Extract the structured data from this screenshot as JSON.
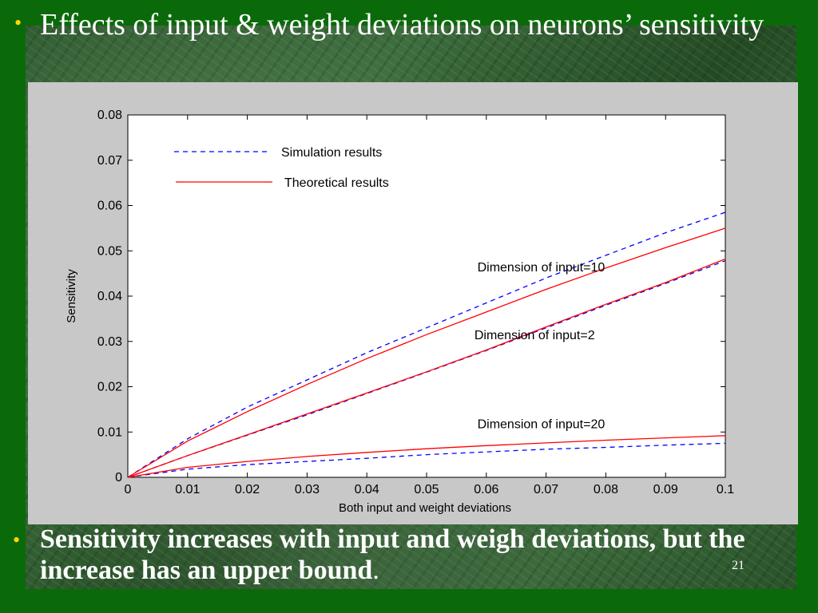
{
  "slide": {
    "title": "Effects of input & weight deviations on neurons’ sensitivity",
    "bullet_text_bold": "Sensitivity increases with input and weigh deviations, but the increase has an upper bound",
    "bullet_text_tail": ".",
    "slide_number": "21",
    "bullet_glyph": "•",
    "colors": {
      "background": "#0a6a0a",
      "bullet": "#ffd700",
      "text": "#ffffff",
      "panel": "#c8c8c8"
    }
  },
  "chart_data": {
    "type": "line",
    "title": "",
    "xlabel": "Both input and weight deviations",
    "ylabel": "Sensitivity",
    "xlim": [
      0,
      0.1
    ],
    "ylim": [
      0,
      0.08
    ],
    "xticks": [
      "0",
      "0.01",
      "0.02",
      "0.03",
      "0.04",
      "0.05",
      "0.06",
      "0.07",
      "0.08",
      "0.09",
      "0.1"
    ],
    "yticks": [
      "0",
      "0.01",
      "0.02",
      "0.03",
      "0.04",
      "0.05",
      "0.06",
      "0.07",
      "0.08"
    ],
    "grid": false,
    "legend": {
      "placement": "top-left",
      "entries": [
        {
          "label": "Simulation results",
          "style": "dashed",
          "color": "#0000ff"
        },
        {
          "label": "Theoretical results",
          "style": "solid",
          "color": "#ff0000"
        }
      ]
    },
    "annotations": [
      {
        "text": "Dimension of input=10",
        "x": 0.0585,
        "y": 0.0455
      },
      {
        "text": "Dimension of input=2",
        "x": 0.058,
        "y": 0.0305
      },
      {
        "text": "Dimension of input=20",
        "x": 0.0585,
        "y": 0.0108
      }
    ],
    "x": [
      0,
      0.01,
      0.02,
      0.03,
      0.04,
      0.05,
      0.06,
      0.07,
      0.08,
      0.09,
      0.1
    ],
    "series": [
      {
        "group": "Dimension of input=10",
        "kind": "Simulation results",
        "style": "dashed",
        "color": "#0000ff",
        "values": [
          0,
          0.0085,
          0.0155,
          0.0215,
          0.0275,
          0.033,
          0.0385,
          0.044,
          0.049,
          0.054,
          0.0585
        ]
      },
      {
        "group": "Dimension of input=10",
        "kind": "Theoretical results",
        "style": "solid",
        "color": "#ff0000",
        "values": [
          0,
          0.008,
          0.0145,
          0.0205,
          0.0262,
          0.0315,
          0.0365,
          0.0415,
          0.0462,
          0.0507,
          0.055
        ]
      },
      {
        "group": "Dimension of input=2",
        "kind": "Simulation results",
        "style": "dashed",
        "color": "#0000ff",
        "values": [
          0,
          0.0048,
          0.0093,
          0.0138,
          0.0185,
          0.0232,
          0.028,
          0.033,
          0.038,
          0.0428,
          0.0478
        ]
      },
      {
        "group": "Dimension of input=2",
        "kind": "Theoretical results",
        "style": "solid",
        "color": "#ff0000",
        "values": [
          0,
          0.0048,
          0.0094,
          0.014,
          0.0186,
          0.0233,
          0.0281,
          0.0332,
          0.0382,
          0.043,
          0.0482
        ]
      },
      {
        "group": "Dimension of input=20",
        "kind": "Simulation results",
        "style": "dashed",
        "color": "#0000ff",
        "values": [
          0,
          0.0018,
          0.0028,
          0.0035,
          0.0042,
          0.005,
          0.0056,
          0.0062,
          0.0066,
          0.0071,
          0.0075
        ]
      },
      {
        "group": "Dimension of input=20",
        "kind": "Theoretical results",
        "style": "solid",
        "color": "#ff0000",
        "values": [
          0,
          0.0022,
          0.0035,
          0.0046,
          0.0055,
          0.0063,
          0.007,
          0.0076,
          0.0082,
          0.0087,
          0.0092
        ]
      }
    ]
  }
}
